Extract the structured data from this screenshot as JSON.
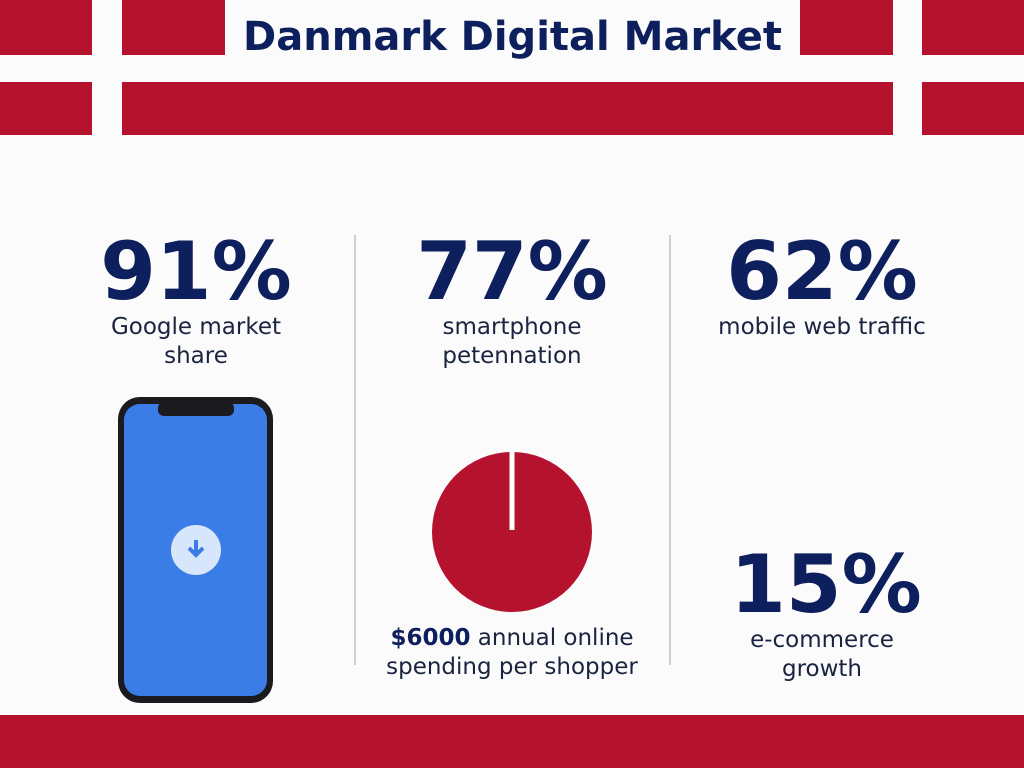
{
  "header": {
    "title": "Danmark Digital Market"
  },
  "stats": [
    {
      "value": "91%",
      "label": "Google market share"
    },
    {
      "value": "77%",
      "label": "smartphone petennation"
    },
    {
      "value": "62%",
      "label": "mobile web traffic"
    },
    {
      "value": "15%",
      "label": "e-commerce growth"
    }
  ],
  "spending": {
    "amount": "$6000",
    "label": "annual online spending per shopper"
  }
}
